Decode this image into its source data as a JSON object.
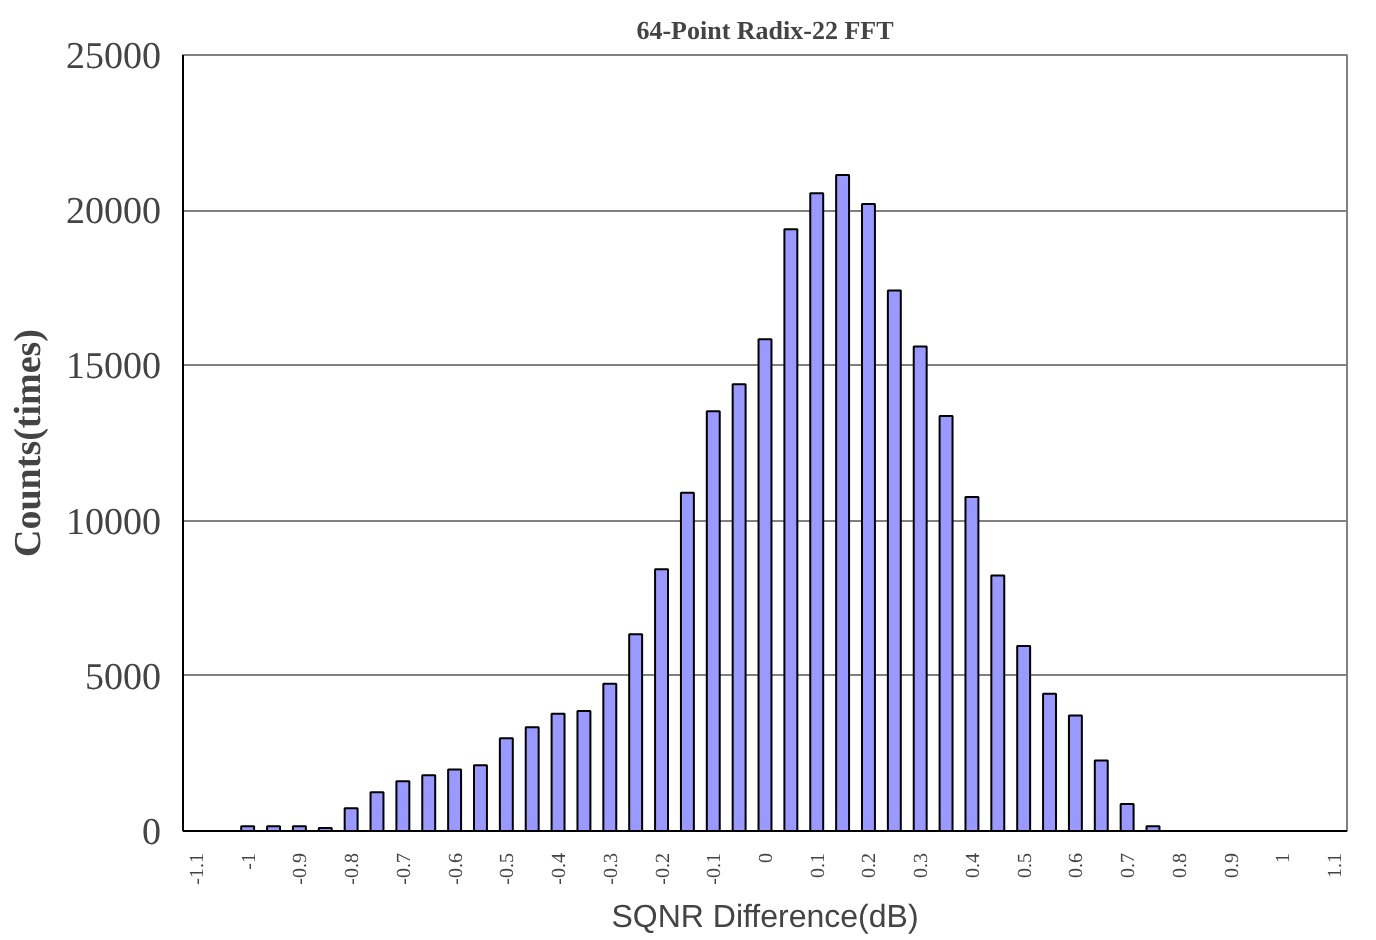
{
  "chart_data": {
    "type": "bar",
    "title": "64-Point Radix-22 FFT",
    "xlabel": "SQNR Difference(dB)",
    "ylabel": "Counts(times)",
    "categories": [
      "-1.1",
      null,
      "-1",
      null,
      "-0.9",
      null,
      "-0.8",
      null,
      "-0.7",
      null,
      "-0.6",
      null,
      "-0.5",
      null,
      "-0.4",
      null,
      "-0.3",
      null,
      "-0.2",
      null,
      "-0.1",
      null,
      "0",
      null,
      "0.1",
      null,
      "0.2",
      null,
      "0.3",
      null,
      "0.4",
      null,
      "0.5",
      null,
      "0.6",
      null,
      "0.7",
      null,
      "0.8",
      null,
      "0.9",
      null,
      "1",
      null,
      "1.1"
    ],
    "values": [
      0,
      0,
      150,
      150,
      150,
      100,
      730,
      1250,
      1600,
      1800,
      1980,
      2120,
      2990,
      3340,
      3780,
      3870,
      4740,
      6340,
      8430,
      10900,
      13520,
      14390,
      15840,
      19390,
      20550,
      21130,
      20200,
      17410,
      15610,
      13370,
      10760,
      8230,
      5960,
      4420,
      3720,
      2270,
      870,
      150,
      0,
      0,
      0,
      0,
      0,
      0,
      0
    ],
    "color": "#9999ff",
    "ylim": [
      0,
      25000
    ],
    "yticks": [
      0,
      5000,
      10000,
      15000,
      20000,
      25000
    ],
    "grid": "y"
  }
}
